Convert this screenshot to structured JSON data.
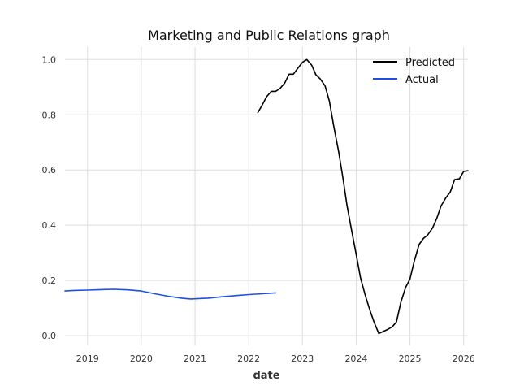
{
  "chart_data": {
    "type": "line",
    "title": "Marketing and Public Relations graph",
    "xlabel": "date",
    "ylabel": "",
    "xlim": [
      2018.58,
      2026.08
    ],
    "ylim": [
      -0.035,
      1.045
    ],
    "x_ticks": [
      2019,
      2020,
      2021,
      2022,
      2023,
      2024,
      2025,
      2026
    ],
    "x_tick_labels": [
      "2019",
      "2020",
      "2021",
      "2022",
      "2023",
      "2024",
      "2025",
      "2026"
    ],
    "y_ticks": [
      0.0,
      0.2,
      0.4,
      0.6,
      0.8,
      1.0
    ],
    "y_tick_labels": [
      "0.0",
      "0.2",
      "0.4",
      "0.6",
      "0.8",
      "1.0"
    ],
    "grid": true,
    "legend": "top-right",
    "series": [
      {
        "name": "Predicted",
        "color": "#000000",
        "points": [
          [
            2022.17,
            0.808
          ],
          [
            2022.25,
            0.835
          ],
          [
            2022.33,
            0.865
          ],
          [
            2022.42,
            0.885
          ],
          [
            2022.5,
            0.885
          ],
          [
            2022.58,
            0.895
          ],
          [
            2022.67,
            0.915
          ],
          [
            2022.75,
            0.947
          ],
          [
            2022.83,
            0.947
          ],
          [
            2022.92,
            0.97
          ],
          [
            2023.0,
            0.99
          ],
          [
            2023.08,
            1.0
          ],
          [
            2023.17,
            0.98
          ],
          [
            2023.25,
            0.945
          ],
          [
            2023.33,
            0.93
          ],
          [
            2023.42,
            0.905
          ],
          [
            2023.5,
            0.85
          ],
          [
            2023.58,
            0.76
          ],
          [
            2023.67,
            0.67
          ],
          [
            2023.75,
            0.575
          ],
          [
            2023.83,
            0.47
          ],
          [
            2023.92,
            0.375
          ],
          [
            2024.0,
            0.295
          ],
          [
            2024.08,
            0.21
          ],
          [
            2024.17,
            0.145
          ],
          [
            2024.25,
            0.095
          ],
          [
            2024.33,
            0.05
          ],
          [
            2024.42,
            0.008
          ],
          [
            2024.5,
            0.015
          ],
          [
            2024.58,
            0.022
          ],
          [
            2024.67,
            0.032
          ],
          [
            2024.75,
            0.05
          ],
          [
            2024.83,
            0.12
          ],
          [
            2024.92,
            0.175
          ],
          [
            2025.0,
            0.205
          ],
          [
            2025.08,
            0.27
          ],
          [
            2025.17,
            0.33
          ],
          [
            2025.25,
            0.352
          ],
          [
            2025.33,
            0.365
          ],
          [
            2025.42,
            0.39
          ],
          [
            2025.5,
            0.425
          ],
          [
            2025.58,
            0.47
          ],
          [
            2025.67,
            0.5
          ],
          [
            2025.75,
            0.52
          ],
          [
            2025.83,
            0.565
          ],
          [
            2025.92,
            0.568
          ],
          [
            2026.0,
            0.595
          ],
          [
            2026.08,
            0.597
          ]
        ]
      },
      {
        "name": "Actual",
        "color": "#1f4fe0",
        "points": [
          [
            2018.58,
            0.162
          ],
          [
            2018.75,
            0.164
          ],
          [
            2019.0,
            0.165
          ],
          [
            2019.25,
            0.167
          ],
          [
            2019.5,
            0.168
          ],
          [
            2019.75,
            0.166
          ],
          [
            2020.0,
            0.162
          ],
          [
            2020.25,
            0.152
          ],
          [
            2020.5,
            0.143
          ],
          [
            2020.75,
            0.136
          ],
          [
            2020.92,
            0.133
          ],
          [
            2021.25,
            0.136
          ],
          [
            2021.5,
            0.141
          ],
          [
            2021.75,
            0.145
          ],
          [
            2022.0,
            0.149
          ],
          [
            2022.25,
            0.152
          ],
          [
            2022.5,
            0.155
          ]
        ]
      }
    ]
  }
}
